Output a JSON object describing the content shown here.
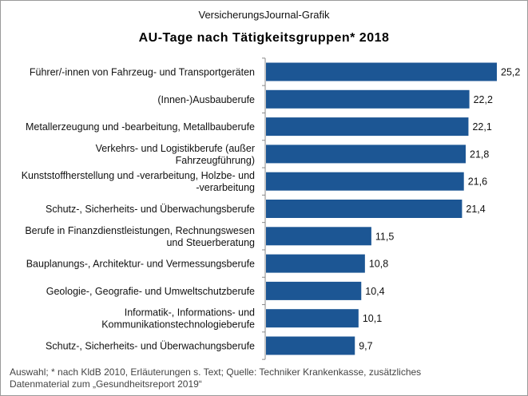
{
  "header": {
    "source": "VersicherungsJournal-Grafik"
  },
  "chart_data": {
    "type": "bar",
    "orientation": "horizontal",
    "title": "AU-Tage  nach  Tätigkeitsgruppen*  2018",
    "bar_color": "#1c5694",
    "categories": [
      [
        "Führer/-innen von Fahrzeug- und Transportgeräten"
      ],
      [
        "(Innen-)Ausbauberufe"
      ],
      [
        "Metallerzeugung und -bearbeitung, Metallbauberufe"
      ],
      [
        "Verkehrs- und Logistikberufe (außer",
        "Fahrzeugführung)"
      ],
      [
        "Kunststoffherstellung und -verarbeitung, Holzbe- und",
        "-verarbeitung"
      ],
      [
        "Schutz-, Sicherheits- und Überwachungsberufe"
      ],
      [
        "Berufe in Finanzdienstleistungen, Rechnungswesen",
        "und Steuerberatung"
      ],
      [
        "Bauplanungs-, Architektur- und Vermessungsberufe"
      ],
      [
        "Geologie-, Geografie- und Umweltschutzberufe"
      ],
      [
        "Informatik-, Informations- und",
        "Kommunikationstechnologieberufe"
      ],
      [
        "Schutz-, Sicherheits- und Überwachungsberufe"
      ]
    ],
    "values": [
      25.2,
      22.2,
      22.1,
      21.8,
      21.6,
      21.4,
      11.5,
      10.8,
      10.4,
      10.1,
      9.7
    ],
    "value_labels": [
      "25,2",
      "22,2",
      "22,1",
      "21,8",
      "21,6",
      "21,4",
      "11,5",
      "10,8",
      "10,4",
      "10,1",
      "9,7"
    ],
    "xlim": [
      0,
      25.2
    ]
  },
  "footer": {
    "note": "Auswahl; * nach KldB 2010, Erläuterungen  s. Text; Quelle: Techniker Krankenkasse, zusätzliches\nDatenmaterial  zum „Gesundheitsreport  2019“"
  }
}
